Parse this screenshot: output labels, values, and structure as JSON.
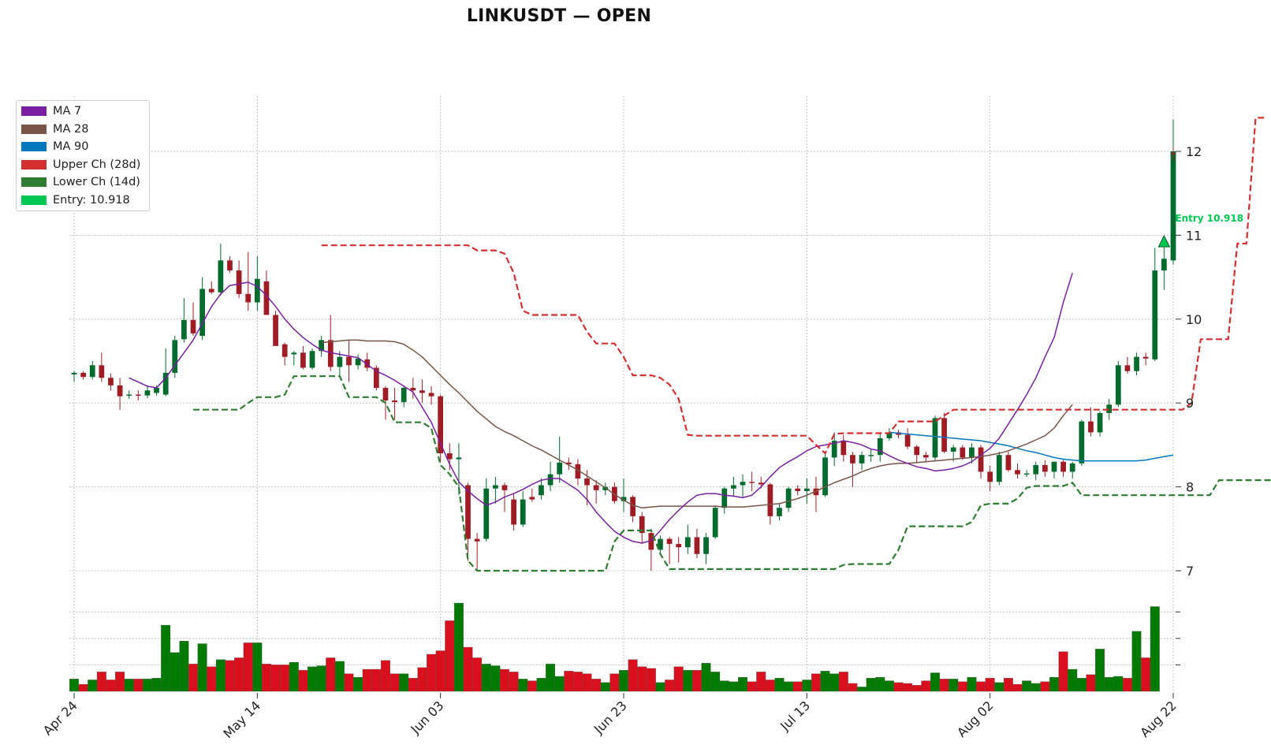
{
  "title": "LINKUSDT — OPEN",
  "colors": {
    "up": "#006b2d",
    "down": "#a01c24",
    "vol_up": "#007a00",
    "vol_down": "#d8101e",
    "ma7": "#7b1fa2",
    "ma28": "#795548",
    "ma90": "#0277bd",
    "upper": "#d32f2f",
    "lower": "#2e7d32",
    "entry": "#00c853"
  },
  "legend": [
    {
      "label": "MA 7",
      "color": "#7b1fa2"
    },
    {
      "label": "MA 28",
      "color": "#795548"
    },
    {
      "label": "MA 90",
      "color": "#0277bd"
    },
    {
      "label": "Upper Ch (28d)",
      "color": "#d32f2f"
    },
    {
      "label": "Lower Ch (14d)",
      "color": "#2e7d32"
    },
    {
      "label": "Entry: 10.918",
      "color": "#00c853"
    }
  ],
  "entry_label": "Entry 10.918",
  "chart_data": {
    "type": "candlestick",
    "title": "LINKUSDT — OPEN",
    "x_tick_labels": [
      "Apr 24",
      "May 14",
      "Jun 03",
      "Jun 23",
      "Jul 13",
      "Aug 02",
      "Aug 22"
    ],
    "x_tick_index": [
      0,
      20,
      40,
      60,
      80,
      100,
      120
    ],
    "y_ticks": [
      7,
      8,
      9,
      10,
      11,
      12
    ],
    "ylim": [
      6.9,
      12.6
    ],
    "x_count": 121,
    "entry": {
      "price": 10.918,
      "index": 119
    },
    "candles_ohlc": [
      [
        9.34,
        9.38,
        9.25,
        9.36
      ],
      [
        9.36,
        9.38,
        9.28,
        9.31
      ],
      [
        9.31,
        9.5,
        9.28,
        9.45
      ],
      [
        9.45,
        9.6,
        9.25,
        9.3
      ],
      [
        9.3,
        9.35,
        9.15,
        9.21
      ],
      [
        9.21,
        9.3,
        8.92,
        9.08
      ],
      [
        9.1,
        9.15,
        9.05,
        9.1
      ],
      [
        9.1,
        9.15,
        9.03,
        9.09
      ],
      [
        9.09,
        9.2,
        9.06,
        9.15
      ],
      [
        9.12,
        9.21,
        9.09,
        9.18
      ],
      [
        9.1,
        9.65,
        9.08,
        9.36
      ],
      [
        9.36,
        9.8,
        9.3,
        9.75
      ],
      [
        9.76,
        10.25,
        9.72,
        9.99
      ],
      [
        9.99,
        10.2,
        9.8,
        9.83
      ],
      [
        9.8,
        10.5,
        9.75,
        10.36
      ],
      [
        10.36,
        10.45,
        10.3,
        10.32
      ],
      [
        10.32,
        10.9,
        10.28,
        10.7
      ],
      [
        10.7,
        10.75,
        10.55,
        10.58
      ],
      [
        10.58,
        10.7,
        10.25,
        10.3
      ],
      [
        10.3,
        10.8,
        10.1,
        10.2
      ],
      [
        10.2,
        10.75,
        10.1,
        10.48
      ],
      [
        10.45,
        10.58,
        10.05,
        10.05
      ],
      [
        10.05,
        10.1,
        9.7,
        9.68
      ],
      [
        9.7,
        9.72,
        9.45,
        9.55
      ],
      [
        9.58,
        9.62,
        9.45,
        9.6
      ],
      [
        9.6,
        9.68,
        9.4,
        9.42
      ],
      [
        9.42,
        9.65,
        9.4,
        9.62
      ],
      [
        9.62,
        9.8,
        9.55,
        9.75
      ],
      [
        9.75,
        10.05,
        9.38,
        9.43
      ],
      [
        9.43,
        9.62,
        9.3,
        9.55
      ],
      [
        9.55,
        9.75,
        9.25,
        9.45
      ],
      [
        9.45,
        9.58,
        9.4,
        9.53
      ],
      [
        9.52,
        9.6,
        9.38,
        9.42
      ],
      [
        9.42,
        9.45,
        9.15,
        9.18
      ],
      [
        9.18,
        9.2,
        8.8,
        9.03
      ],
      [
        9.03,
        9.18,
        8.8,
        9.01
      ],
      [
        9.01,
        9.2,
        8.95,
        9.18
      ],
      [
        9.18,
        9.3,
        9.05,
        9.15
      ],
      [
        9.15,
        9.28,
        9.0,
        9.12
      ],
      [
        9.12,
        9.2,
        8.98,
        9.08
      ],
      [
        9.08,
        9.1,
        8.3,
        8.4
      ],
      [
        8.4,
        8.52,
        8.2,
        8.33
      ],
      [
        8.33,
        8.52,
        7.9,
        8.35
      ],
      [
        8.02,
        8.05,
        7.12,
        7.38
      ],
      [
        7.38,
        7.45,
        7.0,
        7.35
      ],
      [
        7.38,
        8.1,
        7.35,
        7.98
      ],
      [
        7.98,
        8.12,
        7.8,
        8.02
      ],
      [
        8.02,
        8.05,
        7.7,
        7.96
      ],
      [
        7.85,
        7.92,
        7.48,
        7.55
      ],
      [
        7.55,
        7.95,
        7.52,
        7.85
      ],
      [
        7.88,
        7.98,
        7.82,
        7.85
      ],
      [
        7.9,
        8.1,
        7.85,
        8.02
      ],
      [
        8.02,
        8.3,
        7.95,
        8.15
      ],
      [
        8.15,
        8.6,
        8.05,
        8.29
      ],
      [
        8.29,
        8.35,
        8.2,
        8.27
      ],
      [
        8.27,
        8.33,
        8.02,
        8.1
      ],
      [
        8.1,
        8.2,
        7.78,
        8.02
      ],
      [
        8.02,
        8.08,
        7.8,
        7.96
      ],
      [
        7.96,
        8.05,
        7.9,
        8.0
      ],
      [
        8.0,
        8.05,
        7.8,
        7.83
      ],
      [
        7.83,
        8.1,
        7.7,
        7.88
      ],
      [
        7.88,
        7.9,
        7.58,
        7.65
      ],
      [
        7.65,
        7.7,
        7.32,
        7.45
      ],
      [
        7.45,
        7.5,
        7.0,
        7.25
      ],
      [
        7.25,
        7.42,
        7.2,
        7.38
      ],
      [
        7.38,
        7.4,
        7.08,
        7.32
      ],
      [
        7.32,
        7.4,
        7.1,
        7.28
      ],
      [
        7.28,
        7.55,
        7.2,
        7.4
      ],
      [
        7.4,
        7.5,
        7.15,
        7.2
      ],
      [
        7.2,
        7.45,
        7.08,
        7.4
      ],
      [
        7.4,
        7.78,
        7.38,
        7.75
      ],
      [
        7.75,
        8.0,
        7.68,
        7.98
      ],
      [
        7.98,
        8.12,
        7.88,
        8.02
      ],
      [
        8.02,
        8.15,
        7.88,
        8.06
      ],
      [
        8.06,
        8.18,
        7.95,
        8.05
      ],
      [
        8.05,
        8.12,
        7.98,
        8.03
      ],
      [
        8.03,
        8.05,
        7.55,
        7.65
      ],
      [
        7.65,
        7.8,
        7.6,
        7.75
      ],
      [
        7.75,
        8.0,
        7.7,
        7.98
      ],
      [
        7.98,
        8.02,
        7.9,
        7.95
      ],
      [
        7.95,
        8.1,
        7.8,
        7.98
      ],
      [
        7.98,
        8.12,
        7.7,
        7.9
      ],
      [
        7.9,
        8.4,
        7.88,
        8.35
      ],
      [
        8.35,
        8.65,
        8.25,
        8.55
      ],
      [
        8.55,
        8.62,
        8.3,
        8.38
      ],
      [
        8.38,
        8.42,
        8.0,
        8.28
      ],
      [
        8.28,
        8.42,
        8.2,
        8.38
      ],
      [
        8.38,
        8.45,
        8.3,
        8.38
      ],
      [
        8.38,
        8.65,
        8.3,
        8.58
      ],
      [
        8.58,
        8.7,
        8.55,
        8.65
      ],
      [
        8.65,
        8.68,
        8.58,
        8.62
      ],
      [
        8.62,
        8.7,
        8.45,
        8.48
      ],
      [
        8.48,
        8.5,
        8.28,
        8.38
      ],
      [
        8.38,
        8.42,
        8.3,
        8.35
      ],
      [
        8.35,
        8.85,
        8.3,
        8.82
      ],
      [
        8.82,
        8.88,
        8.4,
        8.42
      ],
      [
        8.42,
        8.5,
        8.3,
        8.47
      ],
      [
        8.47,
        8.5,
        8.32,
        8.35
      ],
      [
        8.35,
        8.52,
        8.28,
        8.47
      ],
      [
        8.47,
        8.5,
        8.1,
        8.18
      ],
      [
        8.18,
        8.25,
        7.95,
        8.06
      ],
      [
        8.06,
        8.42,
        8.02,
        8.38
      ],
      [
        8.38,
        8.42,
        8.18,
        8.2
      ],
      [
        8.2,
        8.28,
        8.1,
        8.15
      ],
      [
        8.15,
        8.2,
        8.12,
        8.16
      ],
      [
        8.15,
        8.3,
        8.08,
        8.26
      ],
      [
        8.26,
        8.32,
        8.12,
        8.18
      ],
      [
        8.18,
        8.3,
        8.1,
        8.3
      ],
      [
        8.3,
        8.32,
        8.12,
        8.18
      ],
      [
        8.18,
        8.3,
        8.1,
        8.28
      ],
      [
        8.28,
        8.8,
        8.25,
        8.78
      ],
      [
        8.78,
        8.95,
        8.6,
        8.65
      ],
      [
        8.65,
        8.9,
        8.6,
        8.88
      ],
      [
        8.88,
        9.05,
        8.8,
        8.98
      ],
      [
        8.98,
        9.5,
        8.95,
        9.45
      ],
      [
        9.45,
        9.55,
        9.35,
        9.38
      ],
      [
        9.38,
        9.6,
        9.33,
        9.55
      ],
      [
        9.55,
        9.6,
        9.45,
        9.53
      ],
      [
        9.52,
        10.85,
        9.5,
        10.58
      ],
      [
        10.58,
        10.95,
        10.35,
        10.72
      ],
      [
        10.7,
        12.38,
        10.65,
        12.0
      ]
    ],
    "doji_tail": {
      "index": 120,
      "price": 11.98,
      "low": 11.88,
      "high": 12.05
    },
    "volume_rel": [
      0.14,
      0.08,
      0.13,
      0.22,
      0.13,
      0.22,
      0.14,
      0.14,
      0.14,
      0.15,
      0.75,
      0.44,
      0.57,
      0.31,
      0.54,
      0.28,
      0.36,
      0.35,
      0.38,
      0.55,
      0.55,
      0.31,
      0.3,
      0.3,
      0.33,
      0.24,
      0.28,
      0.29,
      0.38,
      0.34,
      0.2,
      0.16,
      0.25,
      0.25,
      0.35,
      0.2,
      0.2,
      0.15,
      0.27,
      0.42,
      0.46,
      0.8,
      1.0,
      0.5,
      0.38,
      0.31,
      0.29,
      0.25,
      0.22,
      0.14,
      0.12,
      0.15,
      0.31,
      0.17,
      0.23,
      0.22,
      0.2,
      0.14,
      0.1,
      0.2,
      0.24,
      0.36,
      0.28,
      0.26,
      0.1,
      0.13,
      0.28,
      0.24,
      0.24,
      0.32,
      0.22,
      0.12,
      0.11,
      0.16,
      0.11,
      0.22,
      0.13,
      0.15,
      0.11,
      0.11,
      0.13,
      0.2,
      0.23,
      0.2,
      0.22,
      0.09,
      0.05,
      0.15,
      0.16,
      0.12,
      0.1,
      0.09,
      0.07,
      0.12,
      0.21,
      0.14,
      0.14,
      0.11,
      0.16,
      0.11,
      0.15,
      0.1,
      0.15,
      0.08,
      0.12,
      0.09,
      0.11,
      0.16,
      0.45,
      0.25,
      0.15,
      0.19,
      0.48,
      0.16,
      0.17,
      0.15,
      0.68,
      0.38,
      0.96
    ],
    "ma7": {
      "start": 6,
      "values": [
        9.3,
        9.25,
        9.2,
        9.18,
        9.3,
        9.45,
        9.6,
        9.75,
        9.95,
        10.15,
        10.3,
        10.4,
        10.42,
        10.44,
        10.39,
        10.28,
        10.15,
        10.0,
        9.88,
        9.78,
        9.7,
        9.63,
        9.6,
        9.58,
        9.56,
        9.54,
        9.46,
        9.38,
        9.33,
        9.27,
        9.2,
        9.13,
        8.95,
        8.77,
        8.52,
        8.27,
        8.06,
        7.95,
        7.86,
        7.78,
        7.82,
        7.88,
        7.92,
        7.97,
        8.03,
        8.08,
        8.1,
        8.1,
        8.03,
        7.96,
        7.85,
        7.7,
        7.58,
        7.47,
        7.4,
        7.35,
        7.33,
        7.36,
        7.48,
        7.61,
        7.72,
        7.82,
        7.9,
        7.92,
        7.92,
        7.9,
        7.89,
        7.87,
        7.9,
        8.0,
        8.12,
        8.23,
        8.3,
        8.36,
        8.43,
        8.48,
        8.5,
        8.52,
        8.55,
        8.53,
        8.5,
        8.45,
        8.43,
        8.37,
        8.32,
        8.28,
        8.24,
        8.22,
        8.19,
        8.2,
        8.22,
        8.25,
        8.3,
        8.38,
        8.46,
        8.58,
        8.75,
        8.92,
        9.1,
        9.3,
        9.55,
        9.78,
        10.2,
        10.55
      ]
    },
    "ma28": {
      "start": 27,
      "values": [
        9.72,
        9.73,
        9.74,
        9.75,
        9.75,
        9.74,
        9.74,
        9.74,
        9.73,
        9.7,
        9.63,
        9.55,
        9.44,
        9.33,
        9.22,
        9.12,
        9.01,
        8.9,
        8.81,
        8.72,
        8.66,
        8.61,
        8.55,
        8.49,
        8.44,
        8.38,
        8.32,
        8.26,
        8.2,
        8.13,
        8.06,
        7.99,
        7.91,
        7.84,
        7.78,
        7.75,
        7.76,
        7.77,
        7.77,
        7.77,
        7.77,
        7.77,
        7.77,
        7.77,
        7.76,
        7.76,
        7.76,
        7.77,
        7.78,
        7.79,
        7.8,
        7.83,
        7.86,
        7.9,
        7.95,
        8.0,
        8.05,
        8.09,
        8.13,
        8.18,
        8.22,
        8.25,
        8.27,
        8.28,
        8.28,
        8.29,
        8.3,
        8.31,
        8.32,
        8.33,
        8.34,
        8.35,
        8.36,
        8.38,
        8.4,
        8.43,
        8.47,
        8.51,
        8.56,
        8.61,
        8.7,
        8.85,
        8.98
      ]
    },
    "ma90": {
      "start": 89,
      "values": [
        8.65,
        8.64,
        8.63,
        8.62,
        8.61,
        8.6,
        8.59,
        8.58,
        8.57,
        8.56,
        8.55,
        8.53,
        8.51,
        8.49,
        8.46,
        8.43,
        8.41,
        8.38,
        8.35,
        8.33,
        8.32,
        8.31,
        8.31,
        8.31,
        8.31,
        8.31,
        8.31,
        8.31,
        8.32,
        8.34,
        8.36,
        8.38
      ]
    },
    "upper_channel": {
      "start": 27,
      "values": [
        10.88,
        10.88,
        10.88,
        10.88,
        10.88,
        10.88,
        10.88,
        10.88,
        10.88,
        10.88,
        10.88,
        10.88,
        10.88,
        10.88,
        10.88,
        10.88,
        10.88,
        10.82,
        10.82,
        10.82,
        10.78,
        10.55,
        10.1,
        10.05,
        10.05,
        10.05,
        10.05,
        10.05,
        10.05,
        9.85,
        9.71,
        9.71,
        9.71,
        9.55,
        9.33,
        9.33,
        9.33,
        9.3,
        9.22,
        9.05,
        8.62,
        8.61,
        8.61,
        8.61,
        8.61,
        8.61,
        8.61,
        8.61,
        8.61,
        8.61,
        8.61,
        8.61,
        8.61,
        8.61,
        8.5,
        8.4,
        8.63,
        8.64,
        8.64,
        8.64,
        8.64,
        8.64,
        8.64,
        8.78,
        8.78,
        8.78,
        8.78,
        8.78,
        8.85,
        8.92,
        8.92,
        8.92,
        8.92,
        8.92,
        8.92,
        8.92,
        8.92,
        8.92,
        8.92,
        8.92,
        8.92,
        8.92,
        8.92,
        8.92,
        8.92,
        8.92,
        8.92,
        8.92,
        8.92,
        8.92,
        8.92,
        8.92,
        8.92,
        8.92,
        8.92,
        9.0,
        9.76,
        9.76,
        9.76,
        9.76,
        10.9,
        10.9,
        12.4,
        12.4
      ]
    },
    "lower_channel": {
      "start": 13,
      "values": [
        8.92,
        8.92,
        8.92,
        8.92,
        8.92,
        8.92,
        9.0,
        9.07,
        9.07,
        9.07,
        9.1,
        9.32,
        9.32,
        9.32,
        9.32,
        9.32,
        9.32,
        9.07,
        9.07,
        9.07,
        9.07,
        9.0,
        8.77,
        8.77,
        8.77,
        8.77,
        8.7,
        8.26,
        8.15,
        8.0,
        7.12,
        7.0,
        7.0,
        7.0,
        7.0,
        7.0,
        7.0,
        7.0,
        7.0,
        7.0,
        7.0,
        7.0,
        7.0,
        7.0,
        7.0,
        7.0,
        7.35,
        7.48,
        7.48,
        7.48,
        7.48,
        7.2,
        7.02,
        7.02,
        7.02,
        7.02,
        7.02,
        7.02,
        7.02,
        7.02,
        7.02,
        7.02,
        7.02,
        7.02,
        7.02,
        7.02,
        7.02,
        7.02,
        7.02,
        7.02,
        7.02,
        7.07,
        7.08,
        7.08,
        7.08,
        7.08,
        7.08,
        7.25,
        7.53,
        7.53,
        7.53,
        7.53,
        7.53,
        7.53,
        7.53,
        7.58,
        7.78,
        7.8,
        7.8,
        7.8,
        7.86,
        7.99,
        8.01,
        8.01,
        8.01,
        8.01,
        8.05,
        7.9,
        7.9,
        7.9,
        7.9,
        7.9,
        7.9,
        7.9,
        7.9,
        7.9,
        7.9,
        7.9,
        7.9,
        7.9,
        7.9,
        7.9,
        8.08,
        8.08,
        8.08,
        8.08,
        8.08,
        8.08,
        8.08,
        8.1,
        8.18,
        8.18
      ]
    }
  }
}
